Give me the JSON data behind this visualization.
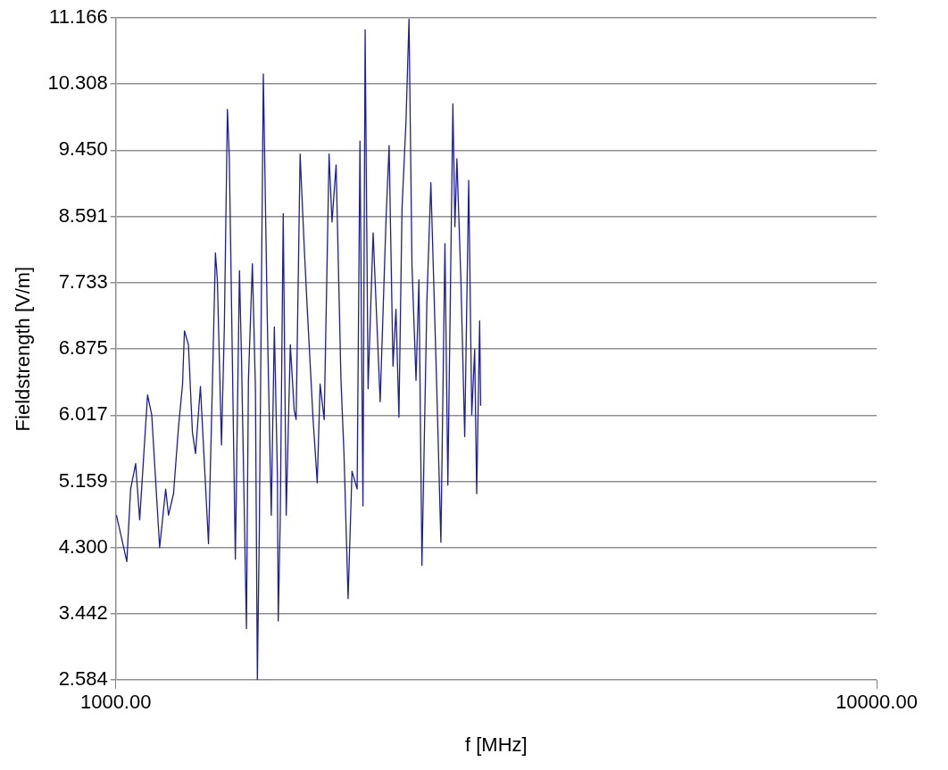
{
  "chart_data": {
    "type": "line",
    "xlabel": "f [MHz]",
    "ylabel": "Fieldstrength [V/m]",
    "log": "x",
    "grid": "y",
    "marker": "none",
    "line_style": "solid",
    "xlim": [
      1000,
      10000
    ],
    "xticks": [
      {
        "value": 1000,
        "label": "1000.00"
      },
      {
        "value": 10000,
        "label": "10000.00"
      }
    ],
    "ylim": [
      2.584,
      11.166
    ],
    "yticks": [
      2.584,
      3.442,
      {
        "value": 4.3,
        "label": "4.300"
      },
      5.159,
      6.017,
      6.875,
      7.733,
      8.591,
      {
        "value": 9.45,
        "label": "9.450"
      },
      10.308,
      11.166
    ],
    "series": [
      {
        "color": "#1c1ca8",
        "x": [
          1002,
          1034,
          1046,
          1062,
          1075,
          1101,
          1115,
          1142,
          1163,
          1173,
          1191,
          1209,
          1224,
          1231,
          1246,
          1261,
          1273,
          1292,
          1324,
          1340,
          1352,
          1360,
          1377,
          1389,
          1402,
          1410,
          1423,
          1436,
          1454,
          1463,
          1485,
          1494,
          1512,
          1526,
          1535,
          1544,
          1553,
          1563,
          1582,
          1601,
          1616,
          1631,
          1635,
          1645,
          1660,
          1675,
          1696,
          1716,
          1726,
          1747,
          1768,
          1784,
          1817,
          1840,
          1856,
          1879,
          1907,
          1924,
          1948,
          1977,
          1995,
          2020,
          2044,
          2076,
          2094,
          2113,
          2127,
          2146,
          2179,
          2226,
          2266,
          2287,
          2314,
          2335,
          2356,
          2378,
          2407,
          2429,
          2451,
          2481,
          2503,
          2526,
          2564,
          2595,
          2611,
          2642,
          2675,
          2708,
          2732,
          2774,
          2791,
          2808,
          2842,
          2875,
          2910,
          2937,
          2963,
          2981,
          3008,
          3017
        ],
        "values": [
          4.72,
          4.12,
          5.06,
          5.39,
          4.66,
          6.28,
          6.02,
          4.3,
          5.06,
          4.72,
          5.0,
          5.86,
          6.42,
          7.11,
          6.93,
          5.8,
          5.52,
          6.39,
          4.35,
          6.45,
          8.12,
          7.77,
          5.63,
          7.16,
          9.98,
          9.36,
          6.76,
          4.15,
          7.89,
          6.76,
          3.25,
          6.47,
          7.98,
          6.36,
          2.59,
          4.49,
          7.33,
          10.44,
          7.23,
          4.72,
          7.16,
          5.23,
          3.35,
          4.66,
          8.63,
          4.72,
          6.93,
          6.08,
          5.96,
          9.4,
          8.24,
          7.45,
          5.96,
          5.14,
          6.42,
          5.96,
          9.4,
          8.52,
          9.26,
          6.47,
          5.52,
          3.64,
          5.29,
          5.06,
          9.57,
          4.84,
          11.01,
          6.36,
          8.38,
          6.19,
          8.57,
          9.51,
          6.65,
          7.39,
          5.99,
          8.69,
          9.83,
          11.15,
          7.95,
          6.47,
          7.77,
          4.07,
          7.49,
          9.03,
          8.12,
          6.36,
          4.37,
          8.24,
          5.11,
          10.05,
          8.46,
          9.34,
          7.77,
          5.74,
          9.06,
          6.02,
          6.87,
          5.0,
          7.24,
          6.14
        ]
      }
    ]
  }
}
